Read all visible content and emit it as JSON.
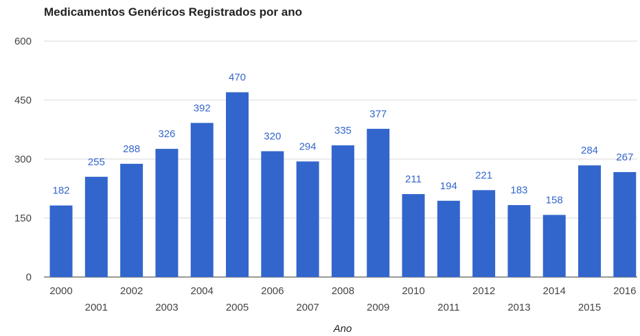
{
  "chart_data": {
    "type": "bar",
    "title": "Medicamentos Genéricos Registrados por ano",
    "xlabel": "Ano",
    "ylabel": "",
    "ylim": [
      0,
      600
    ],
    "yticks": [
      0,
      150,
      300,
      450,
      600
    ],
    "grid": true,
    "legend": "none",
    "bar_color": "#3366cc",
    "categories": [
      "2000",
      "2001",
      "2002",
      "2003",
      "2004",
      "2005",
      "2006",
      "2007",
      "2008",
      "2009",
      "2010",
      "2011",
      "2012",
      "2013",
      "2014",
      "2015",
      "2016"
    ],
    "values": [
      182,
      255,
      288,
      326,
      392,
      470,
      320,
      294,
      335,
      377,
      211,
      194,
      221,
      183,
      158,
      284,
      267
    ]
  }
}
